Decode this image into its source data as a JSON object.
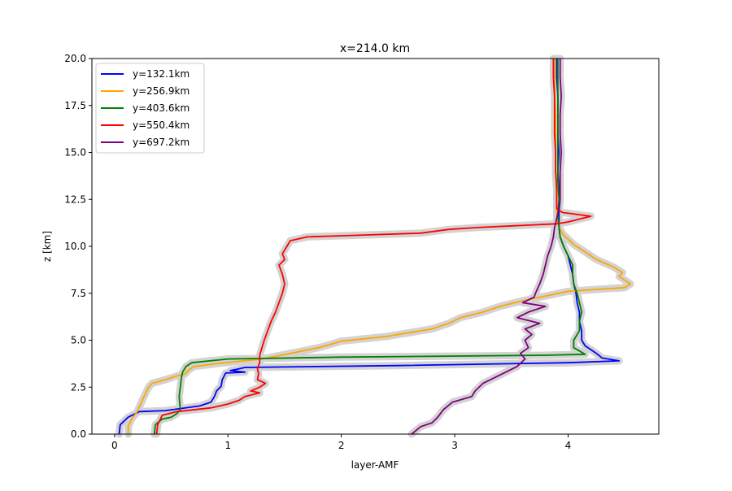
{
  "chart_data": {
    "type": "line",
    "title": "x=214.0 km",
    "xlabel": "layer-AMF",
    "ylabel": "z [km]",
    "xlim": [
      -0.2,
      4.8
    ],
    "ylim": [
      0,
      20
    ],
    "xticks": [
      "0",
      "1",
      "2",
      "3",
      "4"
    ],
    "yticks": [
      "0.0",
      "2.5",
      "5.0",
      "7.5",
      "10.0",
      "12.5",
      "15.0",
      "17.5",
      "20.0"
    ],
    "grid": false,
    "legend_position": "upper-left",
    "uncertainty_band_color": "#d3d3d3",
    "series": [
      {
        "name": "y=132.1km",
        "color": "#0000ff",
        "points": [
          [
            0.04,
            0
          ],
          [
            0.05,
            0.5
          ],
          [
            0.12,
            0.9
          ],
          [
            0.22,
            1.2
          ],
          [
            0.45,
            1.25
          ],
          [
            0.75,
            1.5
          ],
          [
            0.85,
            1.7
          ],
          [
            0.88,
            2.0
          ],
          [
            0.9,
            2.3
          ],
          [
            0.94,
            2.55
          ],
          [
            0.95,
            2.9
          ],
          [
            0.98,
            3.25
          ],
          [
            1.15,
            3.3
          ],
          [
            1.02,
            3.38
          ],
          [
            1.08,
            3.45
          ],
          [
            1.15,
            3.55
          ],
          [
            2.5,
            3.65
          ],
          [
            4.0,
            3.8
          ],
          [
            4.45,
            3.9
          ],
          [
            4.3,
            4.05
          ],
          [
            4.25,
            4.3
          ],
          [
            4.15,
            4.7
          ],
          [
            4.12,
            5.0
          ],
          [
            4.12,
            5.5
          ],
          [
            4.1,
            6.0
          ],
          [
            4.1,
            6.5
          ],
          [
            4.08,
            7.0
          ],
          [
            4.07,
            7.5
          ],
          [
            4.05,
            8.0
          ],
          [
            4.04,
            8.5
          ],
          [
            4.02,
            9.0
          ],
          [
            4.0,
            9.5
          ],
          [
            3.96,
            10.0
          ],
          [
            3.93,
            10.5
          ],
          [
            3.92,
            11.0
          ],
          [
            3.92,
            11.8
          ],
          [
            3.93,
            12.5
          ],
          [
            3.92,
            13.0
          ],
          [
            3.91,
            14.0
          ],
          [
            3.92,
            15.0
          ],
          [
            3.91,
            16.0
          ],
          [
            3.91,
            17.0
          ],
          [
            3.91,
            18.0
          ],
          [
            3.9,
            19.0
          ],
          [
            3.9,
            20.0
          ]
        ]
      },
      {
        "name": "y=256.9km",
        "color": "#ffa500",
        "points": [
          [
            0.12,
            0
          ],
          [
            0.12,
            0.4
          ],
          [
            0.15,
            0.8
          ],
          [
            0.2,
            1.2
          ],
          [
            0.23,
            1.6
          ],
          [
            0.26,
            2.0
          ],
          [
            0.3,
            2.5
          ],
          [
            0.33,
            2.7
          ],
          [
            0.45,
            2.9
          ],
          [
            0.55,
            3.1
          ],
          [
            0.62,
            3.2
          ],
          [
            0.65,
            3.4
          ],
          [
            0.7,
            3.6
          ],
          [
            0.9,
            3.75
          ],
          [
            1.05,
            3.85
          ],
          [
            1.3,
            4.0
          ],
          [
            1.55,
            4.3
          ],
          [
            1.8,
            4.6
          ],
          [
            2.0,
            4.95
          ],
          [
            2.4,
            5.2
          ],
          [
            2.8,
            5.6
          ],
          [
            2.95,
            5.9
          ],
          [
            3.05,
            6.2
          ],
          [
            3.25,
            6.5
          ],
          [
            3.4,
            6.8
          ],
          [
            3.6,
            7.1
          ],
          [
            4.0,
            7.6
          ],
          [
            4.5,
            7.8
          ],
          [
            4.55,
            8.0
          ],
          [
            4.45,
            8.4
          ],
          [
            4.48,
            8.6
          ],
          [
            4.4,
            8.9
          ],
          [
            4.25,
            9.3
          ],
          [
            4.15,
            9.7
          ],
          [
            4.05,
            10.1
          ],
          [
            3.96,
            10.6
          ],
          [
            3.92,
            11.0
          ],
          [
            3.9,
            11.5
          ],
          [
            3.9,
            12.0
          ],
          [
            3.9,
            13.0
          ],
          [
            3.89,
            14.0
          ],
          [
            3.89,
            15.0
          ],
          [
            3.89,
            16.0
          ],
          [
            3.89,
            17.0
          ],
          [
            3.88,
            18.0
          ],
          [
            3.88,
            19.0
          ],
          [
            3.88,
            20.0
          ]
        ]
      },
      {
        "name": "y=403.6km",
        "color": "#008000",
        "points": [
          [
            0.35,
            0
          ],
          [
            0.36,
            0.5
          ],
          [
            0.42,
            0.8
          ],
          [
            0.5,
            0.9
          ],
          [
            0.55,
            1.1
          ],
          [
            0.58,
            1.3
          ],
          [
            0.57,
            2.0
          ],
          [
            0.58,
            2.5
          ],
          [
            0.59,
            3.0
          ],
          [
            0.6,
            3.3
          ],
          [
            0.63,
            3.6
          ],
          [
            0.68,
            3.8
          ],
          [
            1.0,
            4.0
          ],
          [
            2.0,
            4.1
          ],
          [
            3.8,
            4.2
          ],
          [
            4.15,
            4.25
          ],
          [
            4.05,
            4.6
          ],
          [
            4.05,
            5.0
          ],
          [
            4.1,
            5.5
          ],
          [
            4.1,
            6.0
          ],
          [
            4.12,
            6.5
          ],
          [
            4.1,
            7.0
          ],
          [
            4.08,
            7.5
          ],
          [
            4.05,
            8.0
          ],
          [
            4.04,
            8.5
          ],
          [
            4.04,
            9.0
          ],
          [
            4.0,
            9.5
          ],
          [
            3.96,
            10.0
          ],
          [
            3.93,
            10.5
          ],
          [
            3.92,
            11.0
          ],
          [
            3.91,
            11.7
          ],
          [
            3.92,
            12.5
          ],
          [
            3.91,
            13.5
          ],
          [
            3.91,
            14.5
          ],
          [
            3.91,
            15.5
          ],
          [
            3.91,
            16.5
          ],
          [
            3.91,
            17.5
          ],
          [
            3.91,
            18.5
          ],
          [
            3.91,
            19.5
          ],
          [
            3.91,
            20.0
          ]
        ]
      },
      {
        "name": "y=550.4km",
        "color": "#ff0000",
        "points": [
          [
            0.37,
            0
          ],
          [
            0.38,
            0.5
          ],
          [
            0.42,
            1.0
          ],
          [
            0.55,
            1.2
          ],
          [
            0.85,
            1.4
          ],
          [
            1.0,
            1.6
          ],
          [
            1.1,
            1.8
          ],
          [
            1.15,
            2.0
          ],
          [
            1.28,
            2.2
          ],
          [
            1.2,
            2.3
          ],
          [
            1.28,
            2.5
          ],
          [
            1.33,
            2.7
          ],
          [
            1.26,
            2.9
          ],
          [
            1.27,
            3.2
          ],
          [
            1.26,
            3.5
          ],
          [
            1.28,
            3.8
          ],
          [
            1.28,
            4.2
          ],
          [
            1.3,
            4.6
          ],
          [
            1.32,
            5.0
          ],
          [
            1.35,
            5.5
          ],
          [
            1.38,
            6.0
          ],
          [
            1.42,
            6.5
          ],
          [
            1.45,
            7.0
          ],
          [
            1.48,
            7.5
          ],
          [
            1.5,
            8.0
          ],
          [
            1.48,
            8.5
          ],
          [
            1.45,
            9.0
          ],
          [
            1.5,
            9.3
          ],
          [
            1.48,
            9.6
          ],
          [
            1.52,
            10.0
          ],
          [
            1.55,
            10.3
          ],
          [
            1.7,
            10.5
          ],
          [
            2.2,
            10.6
          ],
          [
            2.7,
            10.7
          ],
          [
            2.95,
            10.9
          ],
          [
            3.2,
            11.0
          ],
          [
            3.9,
            11.2
          ],
          [
            4.0,
            11.3
          ],
          [
            4.2,
            11.6
          ],
          [
            3.95,
            11.8
          ],
          [
            3.9,
            12.0
          ],
          [
            3.9,
            13.0
          ],
          [
            3.89,
            14.0
          ],
          [
            3.89,
            15.0
          ],
          [
            3.88,
            16.0
          ],
          [
            3.88,
            17.0
          ],
          [
            3.88,
            18.0
          ],
          [
            3.87,
            19.0
          ],
          [
            3.87,
            20.0
          ]
        ]
      },
      {
        "name": "y=697.2km",
        "color": "#800080",
        "points": [
          [
            2.62,
            0
          ],
          [
            2.7,
            0.4
          ],
          [
            2.8,
            0.6
          ],
          [
            2.85,
            0.9
          ],
          [
            2.9,
            1.3
          ],
          [
            2.98,
            1.7
          ],
          [
            3.15,
            2.0
          ],
          [
            3.18,
            2.3
          ],
          [
            3.25,
            2.7
          ],
          [
            3.35,
            3.0
          ],
          [
            3.45,
            3.3
          ],
          [
            3.55,
            3.6
          ],
          [
            3.62,
            4.0
          ],
          [
            3.58,
            4.3
          ],
          [
            3.65,
            4.6
          ],
          [
            3.62,
            5.0
          ],
          [
            3.68,
            5.3
          ],
          [
            3.62,
            5.6
          ],
          [
            3.75,
            5.9
          ],
          [
            3.55,
            6.2
          ],
          [
            3.65,
            6.5
          ],
          [
            3.8,
            6.8
          ],
          [
            3.6,
            7.0
          ],
          [
            3.7,
            7.3
          ],
          [
            3.72,
            7.6
          ],
          [
            3.75,
            8.0
          ],
          [
            3.78,
            8.5
          ],
          [
            3.8,
            9.0
          ],
          [
            3.82,
            9.5
          ],
          [
            3.85,
            10.0
          ],
          [
            3.87,
            10.5
          ],
          [
            3.88,
            11.0
          ],
          [
            3.9,
            11.5
          ],
          [
            3.92,
            12.0
          ],
          [
            3.93,
            12.5
          ],
          [
            3.93,
            13.0
          ],
          [
            3.93,
            14.0
          ],
          [
            3.94,
            15.0
          ],
          [
            3.93,
            16.0
          ],
          [
            3.93,
            17.0
          ],
          [
            3.94,
            18.0
          ],
          [
            3.93,
            19.0
          ],
          [
            3.93,
            20.0
          ]
        ]
      }
    ]
  }
}
